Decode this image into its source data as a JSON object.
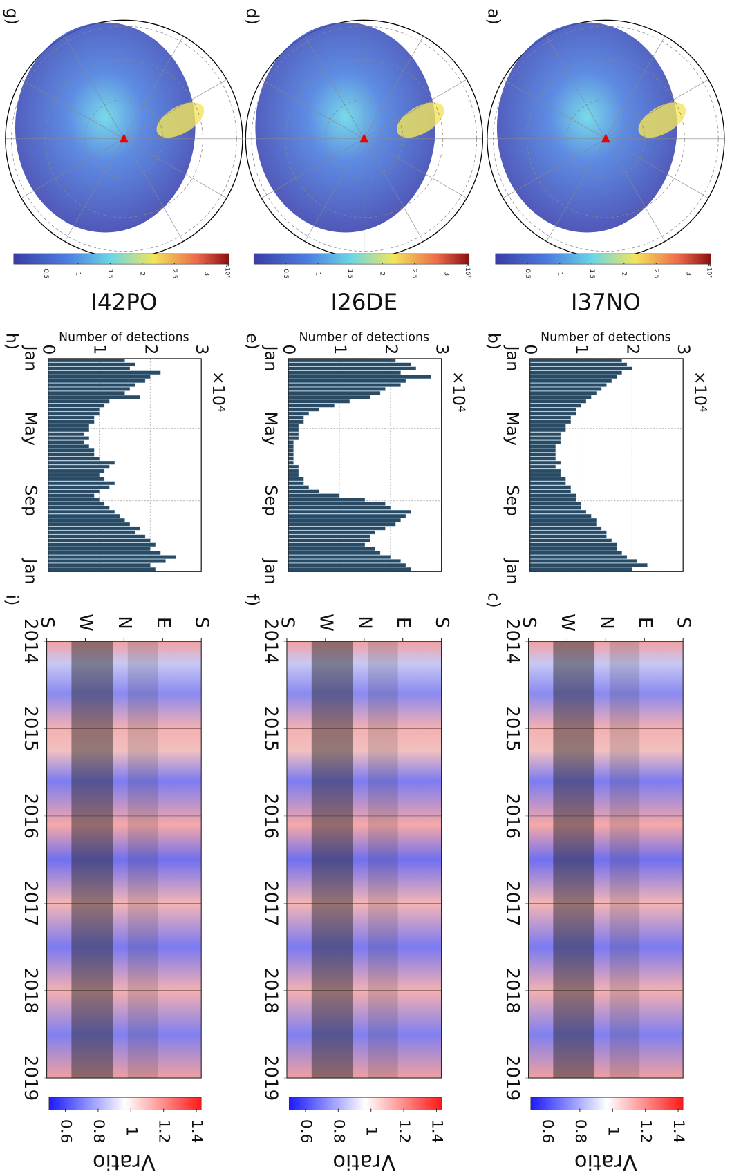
{
  "chart_data": [
    {
      "type": "map",
      "panel_label": "a)",
      "title": "I37NO",
      "colorbar": {
        "lim": [
          0,
          3.35
        ],
        "ticks": [
          0.5,
          1,
          1.5,
          2,
          2.5,
          3
        ],
        "multiplier": "×10⁷"
      }
    },
    {
      "type": "bar",
      "panel_label": "b)",
      "ylabel": "Number of detections",
      "multiplier": "×10⁴",
      "ylim": [
        0,
        3
      ],
      "yticks": [
        0,
        1,
        2,
        3
      ],
      "xlim": [
        0,
        52
      ],
      "xticks": [
        {
          "value": 0,
          "label": "Jan"
        },
        {
          "value": 17.1,
          "label": "May"
        },
        {
          "value": 34.7,
          "label": "Sep"
        },
        {
          "value": 52,
          "label": "Jan"
        }
      ],
      "color": "#2b4a63",
      "values": [
        1.8,
        1.9,
        2.0,
        1.8,
        1.7,
        1.6,
        1.5,
        1.4,
        1.3,
        1.2,
        1.1,
        1.0,
        0.9,
        0.9,
        0.8,
        0.8,
        0.7,
        0.7,
        0.6,
        0.6,
        0.6,
        0.5,
        0.5,
        0.5,
        0.5,
        0.6,
        0.5,
        0.6,
        0.6,
        0.7,
        0.7,
        0.8,
        0.8,
        0.9,
        0.9,
        1.0,
        1.0,
        1.1,
        1.2,
        1.3,
        1.3,
        1.4,
        1.5,
        1.5,
        1.6,
        1.7,
        1.7,
        1.8,
        1.9,
        2.1,
        2.3,
        2.0
      ]
    },
    {
      "type": "heatmap",
      "panel_label": "c)",
      "xlim": [
        -180,
        180
      ],
      "xticks": [
        {
          "value": -180,
          "label": "S"
        },
        {
          "value": -90,
          "label": "W"
        },
        {
          "value": 0,
          "label": "N"
        },
        {
          "value": 90,
          "label": "E"
        },
        {
          "value": 180,
          "label": "S"
        }
      ],
      "ylim": [
        2014,
        2019
      ],
      "yticks": [
        2014,
        2015,
        2016,
        2017,
        2018,
        2019
      ],
      "colorbar": {
        "label": "Vratio",
        "lim": [
          0.5,
          1.43
        ],
        "ticks": [
          0.6,
          0.8,
          1,
          1.2,
          1.4
        ]
      }
    },
    {
      "type": "map",
      "panel_label": "d)",
      "title": "I26DE",
      "colorbar": {
        "lim": [
          0,
          3.35
        ],
        "ticks": [
          0.5,
          1,
          1.5,
          2,
          2.5,
          3
        ],
        "multiplier": "×10⁷"
      }
    },
    {
      "type": "bar",
      "panel_label": "e)",
      "ylabel": "Number of detections",
      "multiplier": "×10⁴",
      "ylim": [
        0,
        3
      ],
      "yticks": [
        0,
        1,
        2,
        3
      ],
      "xlim": [
        0,
        52
      ],
      "xticks": [
        {
          "value": 0,
          "label": "Jan"
        },
        {
          "value": 17.1,
          "label": "May"
        },
        {
          "value": 34.7,
          "label": "Sep"
        },
        {
          "value": 52,
          "label": "Jan"
        }
      ],
      "color": "#2b4a63",
      "values": [
        2.1,
        2.4,
        2.5,
        2.2,
        2.8,
        2.3,
        2.2,
        1.9,
        1.8,
        1.6,
        1.2,
        0.9,
        0.6,
        0.4,
        0.3,
        0.3,
        0.2,
        0.2,
        0.2,
        0.2,
        0.1,
        0.1,
        0.1,
        0.1,
        0.1,
        0.1,
        0.2,
        0.2,
        0.2,
        0.3,
        0.3,
        0.4,
        0.6,
        1.0,
        1.5,
        1.9,
        2.0,
        2.4,
        2.3,
        2.2,
        2.1,
        1.9,
        1.7,
        1.6,
        1.6,
        1.5,
        1.7,
        1.8,
        2.0,
        2.2,
        2.3,
        2.4
      ]
    },
    {
      "type": "heatmap",
      "panel_label": "f)",
      "xlim": [
        -180,
        180
      ],
      "xticks": [
        {
          "value": -180,
          "label": "S"
        },
        {
          "value": -90,
          "label": "W"
        },
        {
          "value": 0,
          "label": "N"
        },
        {
          "value": 90,
          "label": "E"
        },
        {
          "value": 180,
          "label": "S"
        }
      ],
      "ylim": [
        2014,
        2019
      ],
      "yticks": [
        2014,
        2015,
        2016,
        2017,
        2018,
        2019
      ],
      "colorbar": {
        "label": "Vratio",
        "lim": [
          0.5,
          1.43
        ],
        "ticks": [
          0.6,
          0.8,
          1,
          1.2,
          1.4
        ]
      }
    },
    {
      "type": "map",
      "panel_label": "g)",
      "title": "I42PO",
      "colorbar": {
        "lim": [
          0,
          3.35
        ],
        "ticks": [
          0.5,
          1,
          1.5,
          2,
          2.5,
          3
        ],
        "multiplier": "×10⁷"
      }
    },
    {
      "type": "bar",
      "panel_label": "h)",
      "ylabel": "Number of detections",
      "multiplier": "×10⁴",
      "ylim": [
        0,
        3
      ],
      "yticks": [
        0,
        1,
        2,
        3
      ],
      "xlim": [
        0,
        52
      ],
      "xticks": [
        {
          "value": 0,
          "label": "Jan"
        },
        {
          "value": 17.1,
          "label": "May"
        },
        {
          "value": 34.7,
          "label": "Sep"
        },
        {
          "value": 52,
          "label": "Jan"
        }
      ],
      "color": "#2b4a63",
      "values": [
        1.5,
        1.7,
        1.6,
        2.2,
        2.0,
        1.9,
        1.7,
        1.6,
        1.5,
        1.8,
        1.2,
        1.1,
        1.0,
        1.0,
        0.9,
        0.9,
        0.8,
        0.8,
        0.7,
        0.8,
        0.7,
        0.8,
        0.9,
        0.9,
        1.0,
        1.3,
        1.2,
        1.1,
        1.0,
        1.1,
        1.3,
        1.2,
        1.0,
        0.9,
        1.0,
        1.1,
        1.2,
        1.3,
        1.4,
        1.5,
        1.6,
        1.8,
        1.7,
        1.9,
        2.0,
        2.1,
        2.0,
        2.2,
        2.5,
        2.3,
        2.0,
        2.1
      ]
    },
    {
      "type": "heatmap",
      "panel_label": "i)",
      "xlim": [
        -180,
        180
      ],
      "xticks": [
        {
          "value": -180,
          "label": "S"
        },
        {
          "value": -90,
          "label": "W"
        },
        {
          "value": 0,
          "label": "N"
        },
        {
          "value": 90,
          "label": "E"
        },
        {
          "value": 180,
          "label": "S"
        }
      ],
      "ylim": [
        2014,
        2019
      ],
      "yticks": [
        2014,
        2015,
        2016,
        2017,
        2018,
        2019
      ],
      "colorbar": {
        "label": "Vratio",
        "lim": [
          0.5,
          1.43
        ],
        "ticks": [
          0.6,
          0.8,
          1,
          1.2,
          1.4
        ]
      }
    }
  ]
}
